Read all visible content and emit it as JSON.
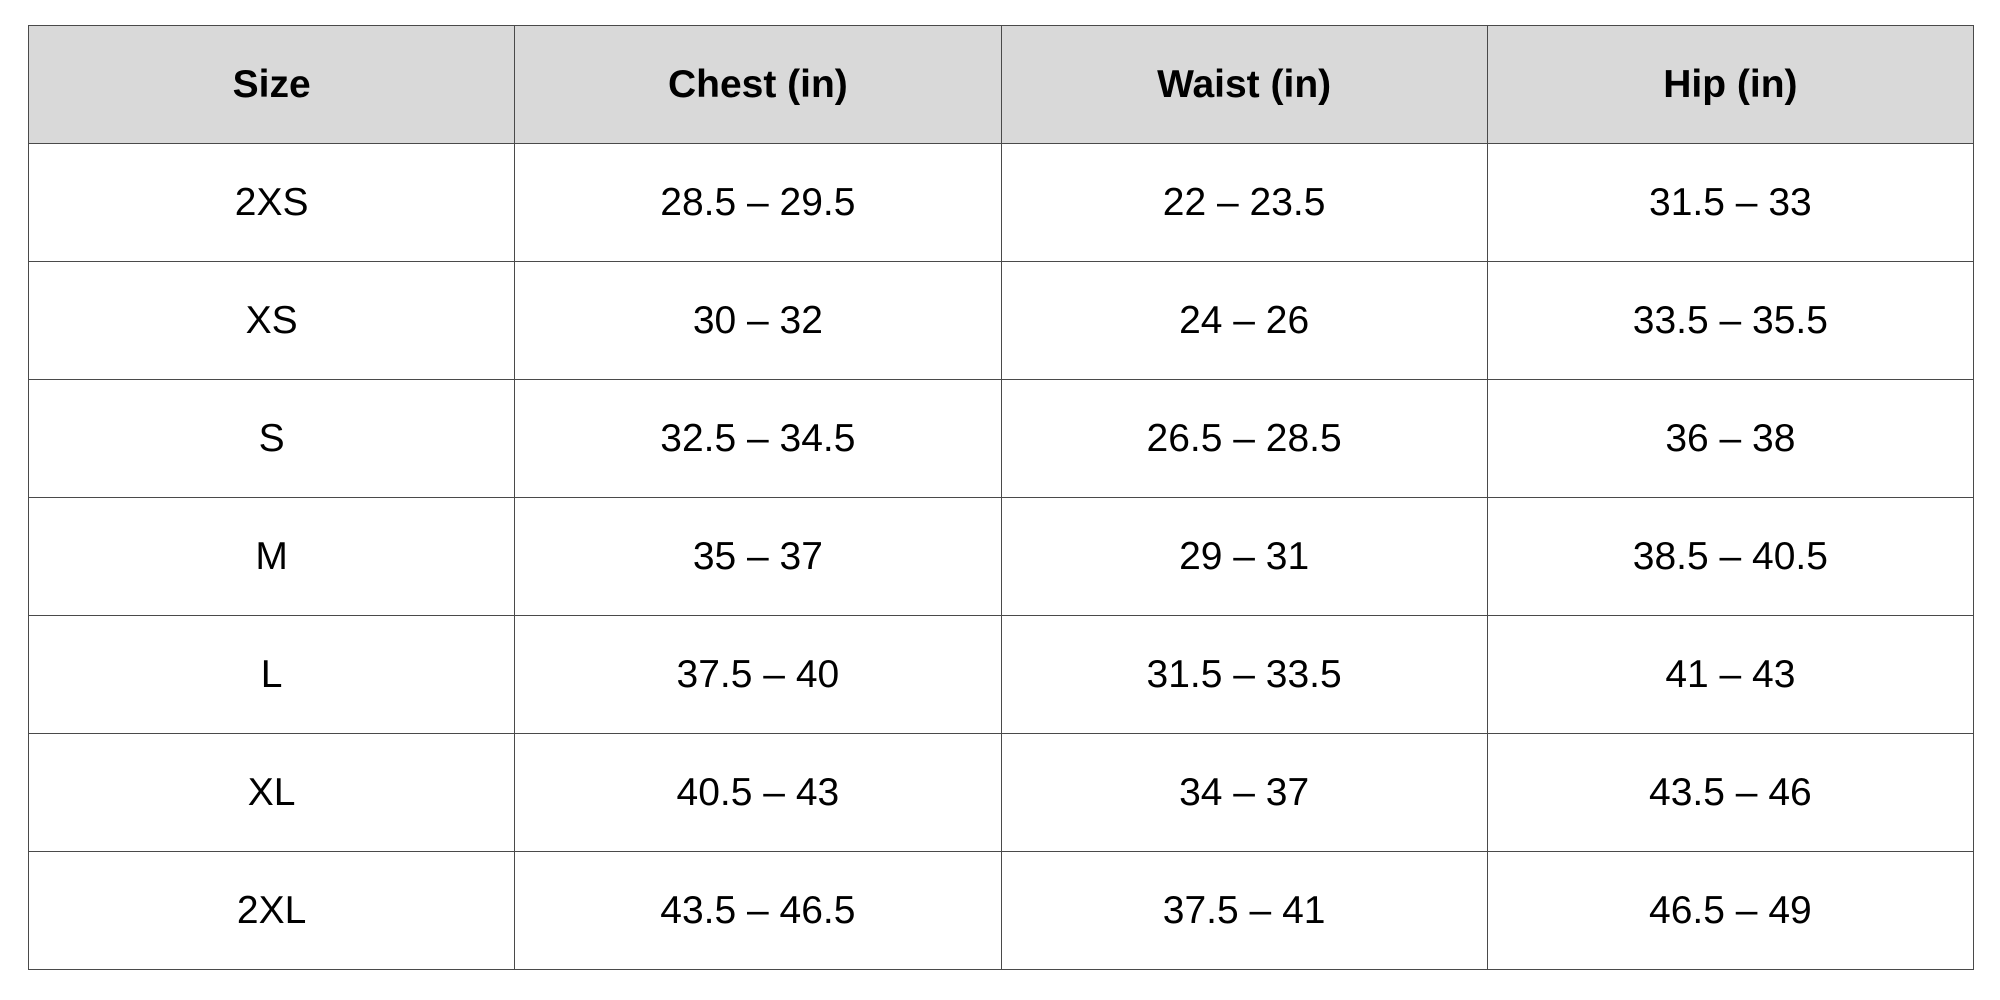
{
  "table": {
    "headers": [
      "Size",
      "Chest (in)",
      "Waist (in)",
      "Hip (in)"
    ],
    "rows": [
      [
        "2XS",
        "28.5 – 29.5",
        "22 – 23.5",
        "31.5 – 33"
      ],
      [
        "XS",
        "30 – 32",
        "24 – 26",
        "33.5 – 35.5"
      ],
      [
        "S",
        "32.5 – 34.5",
        "26.5 – 28.5",
        "36 – 38"
      ],
      [
        "M",
        "35 – 37",
        "29 – 31",
        "38.5 – 40.5"
      ],
      [
        "L",
        "37.5 – 40",
        "31.5 – 33.5",
        "41 – 43"
      ],
      [
        "XL",
        "40.5 – 43",
        "34 – 37",
        "43.5 – 46"
      ],
      [
        "2XL",
        "43.5 – 46.5",
        "37.5 – 41",
        "46.5 – 49"
      ]
    ]
  },
  "colors": {
    "header_background": "#d9d9d9",
    "border": "#4a4a4a",
    "text": "#000000"
  }
}
